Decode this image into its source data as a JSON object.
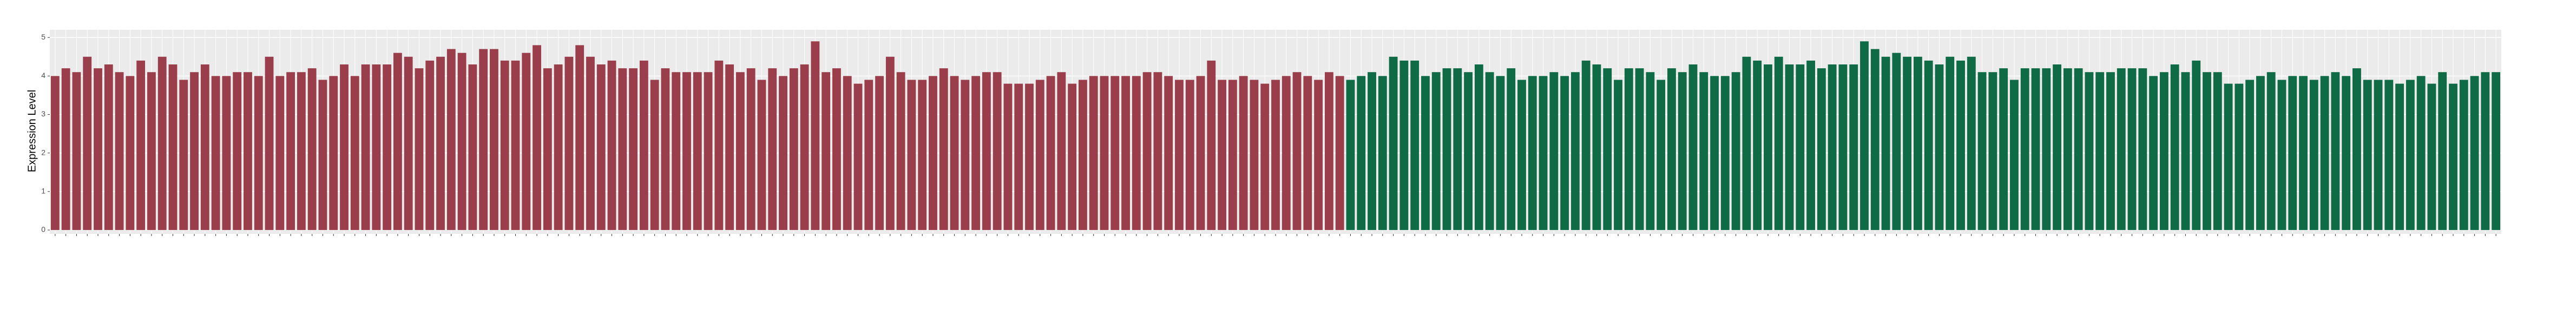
{
  "chart_data": {
    "type": "bar",
    "y_label": "Expression Level",
    "ylim": [
      -0.1,
      5.2
    ],
    "yticks": [
      0,
      1,
      2,
      3,
      4,
      5
    ],
    "grid": true,
    "groups": [
      {
        "color": "#9b3e4b",
        "values": [
          4.0,
          4.2,
          4.1,
          4.5,
          4.2,
          4.3,
          4.1,
          4.0,
          4.4,
          4.1,
          4.5,
          4.3,
          3.9,
          4.1,
          4.3,
          4.0,
          4.0,
          4.1,
          4.1,
          4.0,
          4.5,
          4.0,
          4.1,
          4.1,
          4.2,
          3.9,
          4.0,
          4.3,
          4.0,
          4.3,
          4.3,
          4.3,
          4.6,
          4.5,
          4.2,
          4.4,
          4.5,
          4.7,
          4.6,
          4.3,
          4.7,
          4.7,
          4.4,
          4.4,
          4.6,
          4.8,
          4.2,
          4.3,
          4.5,
          4.8,
          4.5,
          4.3,
          4.4,
          4.2,
          4.2,
          4.4,
          3.9,
          4.2,
          4.1,
          4.1,
          4.1,
          4.1,
          4.4,
          4.3,
          4.1,
          4.2,
          3.9,
          4.2,
          4.0,
          4.2,
          4.3,
          4.9,
          4.1,
          4.2,
          4.0,
          3.8,
          3.9,
          4.0,
          4.5,
          4.1,
          3.9,
          3.9,
          4.0,
          4.2,
          4.0,
          3.9,
          4.0,
          4.1,
          4.1,
          3.8,
          3.8,
          3.8,
          3.9,
          4.0,
          4.1,
          3.8,
          3.9,
          4.0,
          4.0,
          4.0,
          4.0,
          4.0,
          4.1,
          4.1,
          4.0,
          3.9,
          3.9,
          4.0,
          4.4,
          3.9,
          3.9,
          4.0,
          3.9,
          3.8,
          3.9,
          4.0,
          4.1,
          4.0,
          3.9,
          4.1,
          4.0
        ]
      },
      {
        "color": "#0e6b45",
        "values": [
          3.9,
          4.0,
          4.1,
          4.0,
          4.5,
          4.4,
          4.4,
          4.0,
          4.1,
          4.2,
          4.2,
          4.1,
          4.3,
          4.1,
          4.0,
          4.2,
          3.9,
          4.0,
          4.0,
          4.1,
          4.0,
          4.1,
          4.4,
          4.3,
          4.2,
          3.9,
          4.2,
          4.2,
          4.1,
          3.9,
          4.2,
          4.1,
          4.3,
          4.1,
          4.0,
          4.0,
          4.1,
          4.5,
          4.4,
          4.3,
          4.5,
          4.3,
          4.3,
          4.4,
          4.2,
          4.3,
          4.3,
          4.3,
          4.9,
          4.7,
          4.5,
          4.6,
          4.5,
          4.5,
          4.4,
          4.3,
          4.5,
          4.4,
          4.5,
          4.1,
          4.1,
          4.2,
          3.9,
          4.2,
          4.2,
          4.2,
          4.3,
          4.2,
          4.2,
          4.1,
          4.1,
          4.1,
          4.2,
          4.2,
          4.2,
          4.0,
          4.1,
          4.3,
          4.1,
          4.4,
          4.1,
          4.1,
          3.8,
          3.8,
          3.9,
          4.0,
          4.1,
          3.9,
          4.0,
          4.0,
          3.9,
          4.0,
          4.1,
          4.0,
          4.2,
          3.9,
          3.9,
          3.9,
          3.8,
          3.9,
          4.0,
          3.8,
          4.1,
          3.8,
          3.9,
          4.0,
          4.1,
          4.1
        ]
      }
    ]
  }
}
